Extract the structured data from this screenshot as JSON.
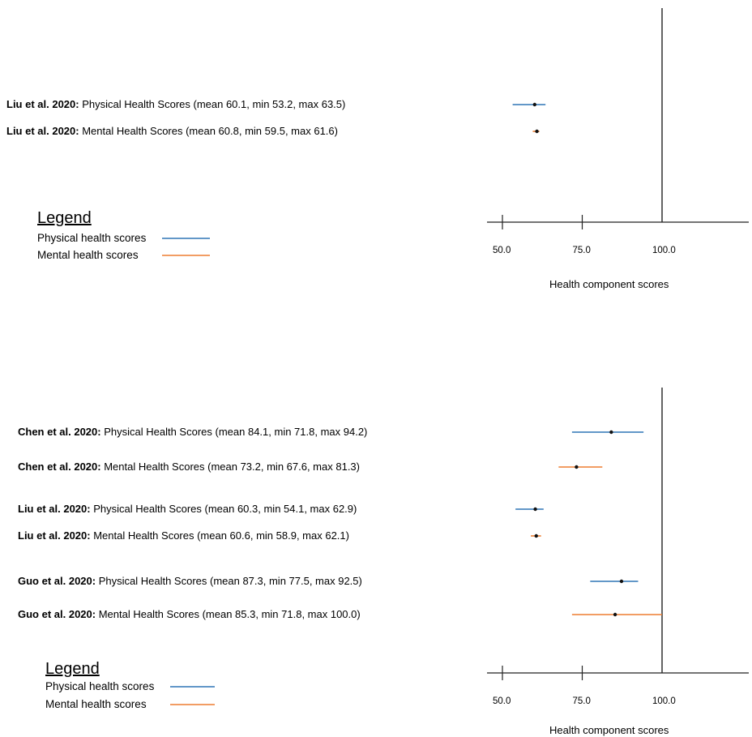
{
  "chart_data": [
    {
      "type": "forest",
      "xlabel": "Health component scores",
      "x_ticks": [
        "50.0",
        "75.0",
        "100.0"
      ],
      "reference_line": 100.0,
      "legend_title": "Legend",
      "series": [
        {
          "name": "Physical health scores",
          "color": "#2e75b6"
        },
        {
          "name": "Mental health scores",
          "color": "#ed7d31"
        }
      ],
      "rows": [
        {
          "author": "Liu et al. 2020:",
          "text": " Physical Health Scores (mean 60.1, min 53.2, max 63.5)",
          "mean": 60.1,
          "min": 53.2,
          "max": 63.5,
          "series": 0
        },
        {
          "author": "Liu et al. 2020:",
          "text": " Mental Health Scores (mean 60.8, min 59.5, max 61.6)",
          "mean": 60.8,
          "min": 59.5,
          "max": 61.6,
          "series": 1
        }
      ]
    },
    {
      "type": "forest",
      "xlabel": "Health component scores",
      "x_ticks": [
        "50.0",
        "75.0",
        "100.0"
      ],
      "reference_line": 100.0,
      "legend_title": "Legend",
      "series": [
        {
          "name": "Physical health scores",
          "color": "#2e75b6"
        },
        {
          "name": "Mental health scores",
          "color": "#ed7d31"
        }
      ],
      "rows": [
        {
          "author": "Chen et al. 2020:",
          "text": " Physical Health Scores (mean 84.1, min 71.8, max 94.2)",
          "mean": 84.1,
          "min": 71.8,
          "max": 94.2,
          "series": 0
        },
        {
          "author": "Chen et al. 2020:",
          "text": " Mental Health Scores (mean 73.2, min 67.6, max 81.3)",
          "mean": 73.2,
          "min": 67.6,
          "max": 81.3,
          "series": 1
        },
        {
          "author": "Liu et al. 2020:",
          "text": " Physical Health Scores (mean 60.3, min 54.1, max 62.9)",
          "mean": 60.3,
          "min": 54.1,
          "max": 62.9,
          "series": 0
        },
        {
          "author": "Liu et al. 2020:",
          "text": " Mental Health Scores (mean 60.6, min 58.9, max 62.1)",
          "mean": 60.6,
          "min": 58.9,
          "max": 62.1,
          "series": 1
        },
        {
          "author": "Guo et al. 2020:",
          "text": " Physical Health Scores (mean 87.3, min 77.5, max 92.5)",
          "mean": 87.3,
          "min": 77.5,
          "max": 92.5,
          "series": 0
        },
        {
          "author": "Guo et al. 2020:",
          "text": " Mental Health Scores (mean 85.3, min 71.8, max 100.0)",
          "mean": 85.3,
          "min": 71.8,
          "max": 100.0,
          "series": 1
        }
      ]
    }
  ]
}
